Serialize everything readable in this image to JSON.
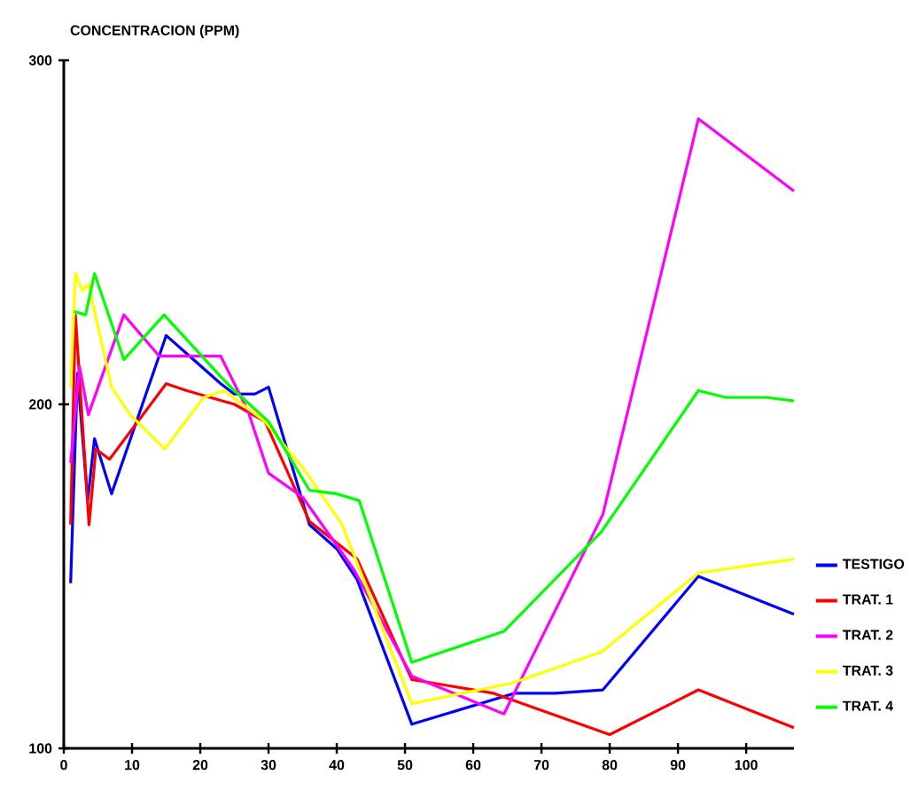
{
  "chart_data": {
    "type": "line",
    "ylabel": "CONCENTRACION (PPM)",
    "xlim": [
      0,
      107
    ],
    "xticks": [
      0,
      10,
      20,
      30,
      40,
      50,
      60,
      70,
      80,
      90,
      100
    ],
    "ylim": [
      100,
      300
    ],
    "yticks": [
      100,
      200,
      300
    ],
    "legend": "right",
    "series": [
      {
        "name": "TESTIGO",
        "color": "#0000ff",
        "x": [
          1,
          2,
          3.5,
          4.5,
          7,
          15,
          19,
          23,
          25,
          28,
          30,
          36,
          40,
          43,
          51,
          66,
          72,
          79,
          93,
          107
        ],
        "values": [
          148,
          209,
          172,
          190,
          174,
          220,
          213,
          206,
          203,
          203,
          205,
          165,
          158,
          149,
          107,
          116,
          116,
          117,
          150,
          139
        ]
      },
      {
        "name": "TRAT. 1",
        "color": "#ff0000",
        "x": [
          1,
          1.7,
          3.7,
          4.7,
          6.7,
          15,
          18,
          25,
          29.5,
          36,
          43,
          51,
          63,
          80,
          93,
          107
        ],
        "values": [
          165,
          226,
          165,
          187,
          184,
          206,
          204,
          200,
          195,
          166,
          155,
          120,
          116,
          104,
          117,
          106
        ]
      },
      {
        "name": "TRAT. 2",
        "color": "#ff00ff",
        "x": [
          1,
          2.3,
          3.6,
          8.8,
          14,
          23,
          27,
          30,
          35,
          42.5,
          51,
          64.5,
          79,
          93,
          107
        ],
        "values": [
          183,
          211,
          197,
          226,
          214,
          214,
          198,
          180,
          173,
          152,
          121,
          110,
          168,
          283,
          262
        ]
      },
      {
        "name": "TRAT. 3",
        "color": "#ffff00",
        "x": [
          1,
          1.7,
          2.7,
          3.6,
          7,
          9.7,
          14.8,
          20.5,
          23.5,
          29.5,
          35.6,
          40.8,
          51,
          65.8,
          78.8,
          93,
          107
        ],
        "values": [
          205,
          238,
          233,
          235,
          205,
          197,
          187,
          202,
          204,
          195,
          180,
          165,
          113,
          119,
          128,
          151,
          155
        ]
      },
      {
        "name": "TRAT. 4",
        "color": "#00ff00",
        "x": [
          1.5,
          3.2,
          4.5,
          8.8,
          14.7,
          23,
          25,
          30,
          36,
          40,
          43.3,
          51,
          64.5,
          78.8,
          93,
          97,
          103,
          107
        ],
        "values": [
          227,
          226,
          238,
          213,
          226,
          208,
          204,
          195,
          175,
          174,
          172,
          125,
          134,
          163,
          204,
          202,
          202,
          201
        ]
      }
    ]
  }
}
